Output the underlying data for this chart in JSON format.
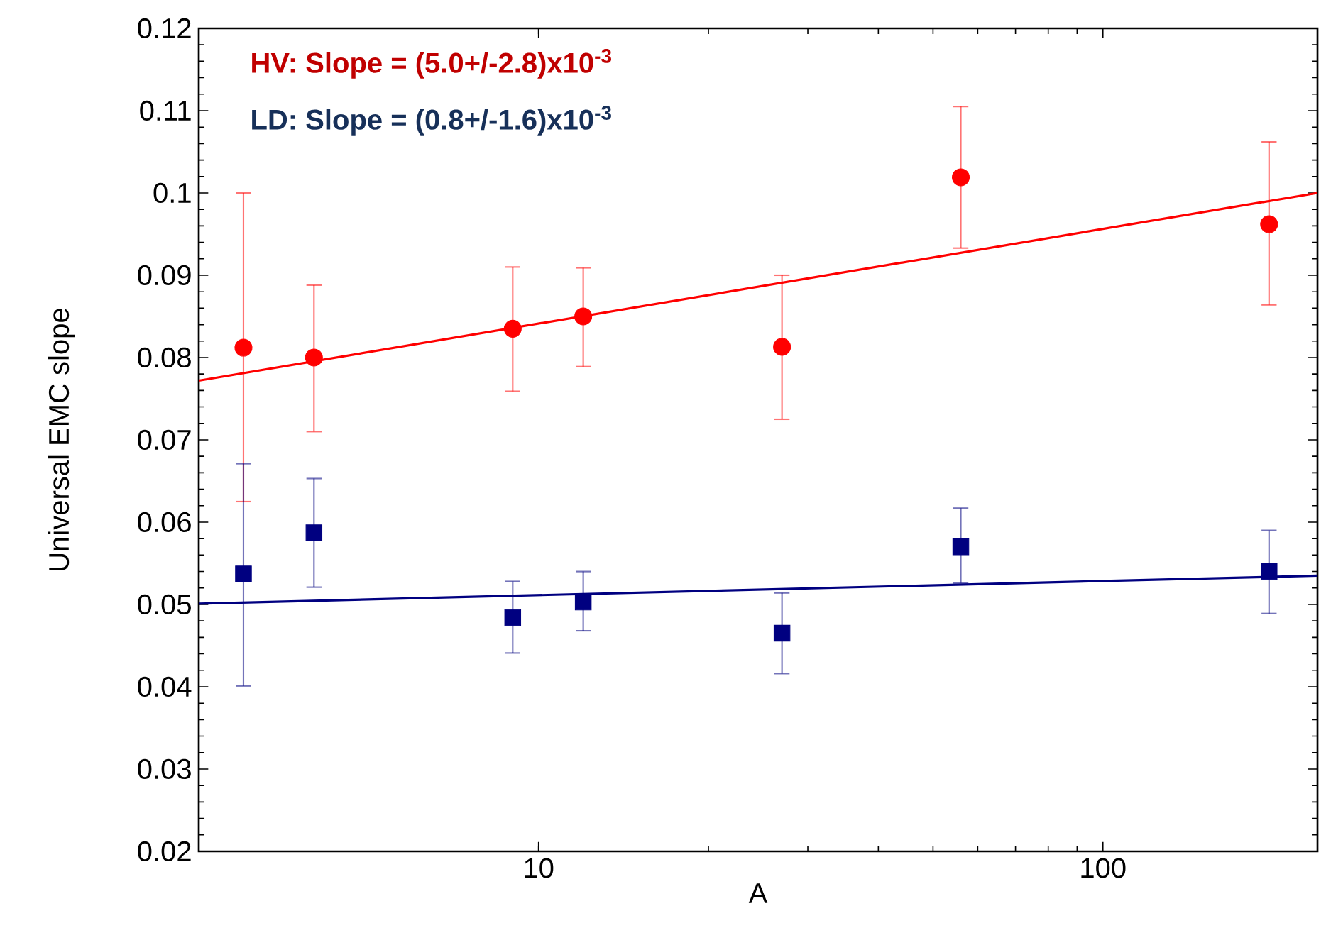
{
  "chart_data": {
    "type": "scatter",
    "xlabel": "A",
    "ylabel": "Universal EMC slope",
    "log": "x",
    "xlim": [
      2.5,
      240
    ],
    "xticks": [
      10,
      100
    ],
    "ylim": [
      0.02,
      0.12
    ],
    "yticks": [
      0.02,
      0.03,
      0.04,
      0.05,
      0.06,
      0.07,
      0.08,
      0.09,
      0.1,
      0.11,
      0.12
    ],
    "grid": false,
    "annotations": [
      "**HV: Slope = (5.0+/-2.8)x10$^{-3}$**",
      "**LD: Slope  = (0.8+/-1.6)x10$^{-3}$**"
    ],
    "series": [
      {
        "color": "#ff0000",
        "marker": "circle",
        "x": [
          3,
          4,
          9,
          12,
          27,
          56,
          197
        ],
        "values": [
          0.0812,
          0.08,
          0.0835,
          0.085,
          0.0813,
          0.1019,
          0.0962
        ],
        "errors": [
          [
            0.0625,
            0.1
          ],
          [
            0.071,
            0.0888
          ],
          [
            0.0759,
            0.091
          ],
          [
            0.0789,
            0.0909
          ],
          [
            0.0725,
            0.09
          ],
          [
            0.0933,
            0.1105
          ],
          [
            0.0864,
            0.1062
          ]
        ]
      },
      {
        "color": "#000080",
        "marker": "square",
        "x": [
          3,
          4,
          9,
          12,
          27,
          56,
          197
        ],
        "values": [
          0.0537,
          0.0587,
          0.0484,
          0.0503,
          0.0465,
          0.057,
          0.054
        ],
        "errors": [
          [
            0.0401,
            0.0671
          ],
          [
            0.0521,
            0.0653
          ],
          [
            0.0441,
            0.0528
          ],
          [
            0.0468,
            0.054
          ],
          [
            0.0416,
            0.0514
          ],
          [
            0.0526,
            0.0617
          ],
          [
            0.0489,
            0.059
          ]
        ]
      },
      {
        "type": "line",
        "color": "#ff0000",
        "marker": "none",
        "x": [
          2.5,
          240
        ],
        "values": [
          0.0772,
          0.1
        ]
      },
      {
        "type": "line",
        "color": "#000080",
        "marker": "none",
        "x": [
          2.5,
          240
        ],
        "values": [
          0.0501,
          0.0535
        ]
      }
    ]
  }
}
